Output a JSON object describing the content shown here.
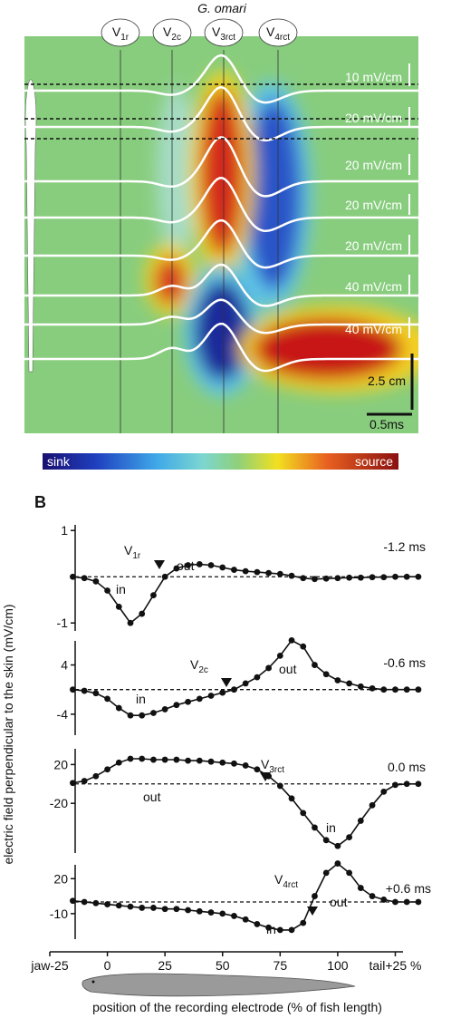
{
  "panel_a": {
    "title": "G. omari",
    "electrodes": [
      {
        "text": "V",
        "sub": "1r"
      },
      {
        "text": "V",
        "sub": "2c"
      },
      {
        "text": "V",
        "sub": "3rct"
      },
      {
        "text": "V",
        "sub": "4rct"
      }
    ],
    "scale_labels": [
      "10 mV/cm",
      "20 mV/cm",
      "20 mV/cm",
      "20 mV/cm",
      "20 mV/cm",
      "40 mV/cm",
      "40 mV/cm"
    ],
    "length_scale": "2.5 cm",
    "time_scale": "0.5ms",
    "colorbar": {
      "low": "sink",
      "high": "source"
    }
  },
  "panel_b": {
    "label": "B",
    "y_label": "electric field perpendicular to the skin (mV/cm)"
  },
  "chart_data": [
    {
      "type": "line",
      "x": [
        -15,
        -10,
        -5,
        0,
        5,
        10,
        15,
        20,
        25,
        30,
        35,
        40,
        45,
        50,
        55,
        60,
        65,
        70,
        75,
        80,
        85,
        90,
        95,
        100,
        105,
        110,
        115,
        120,
        125,
        130,
        135
      ],
      "series": [
        {
          "color": "#111111",
          "values": [
            0,
            -0.03,
            -0.1,
            -0.3,
            -0.65,
            -1.0,
            -0.8,
            -0.4,
            0.0,
            0.18,
            0.25,
            0.27,
            0.25,
            0.2,
            0.15,
            0.12,
            0.1,
            0.08,
            0.06,
            0.02,
            -0.03,
            -0.05,
            -0.04,
            -0.03,
            -0.02,
            -0.02,
            -0.01,
            -0.01,
            0,
            0,
            0
          ]
        }
      ],
      "xlim": [
        -25,
        137
      ],
      "ylim": [
        -1.25,
        1.2
      ],
      "yticks": [
        -1,
        1
      ],
      "hline": 0,
      "annotations": {
        "time": "-1.2 ms",
        "in": "in",
        "out": "out",
        "marker": {
          "text": "V",
          "sub": "1r"
        }
      }
    },
    {
      "type": "line",
      "x": [
        -15,
        -10,
        -5,
        0,
        5,
        10,
        15,
        20,
        25,
        30,
        35,
        40,
        45,
        50,
        55,
        60,
        65,
        70,
        75,
        80,
        85,
        90,
        95,
        100,
        105,
        110,
        115,
        120,
        125,
        130,
        135
      ],
      "series": [
        {
          "color": "#111111",
          "values": [
            0,
            -0.2,
            -0.6,
            -1.5,
            -3,
            -4.2,
            -4.2,
            -3.8,
            -3.2,
            -2.5,
            -2,
            -1.5,
            -1,
            -0.5,
            0,
            1,
            2,
            3.5,
            5.5,
            8,
            7,
            4,
            2.5,
            1.5,
            1,
            0.5,
            0.2,
            0,
            0,
            0,
            0
          ]
        }
      ],
      "xlim": [
        -25,
        137
      ],
      "ylim": [
        -8,
        8.5
      ],
      "yticks": [
        -4,
        4
      ],
      "hline": 0,
      "annotations": {
        "time": "-0.6 ms",
        "in": "in",
        "out": "out",
        "marker": {
          "text": "V",
          "sub": "2c"
        }
      }
    },
    {
      "type": "line",
      "x": [
        -15,
        -10,
        -5,
        0,
        5,
        10,
        15,
        20,
        25,
        30,
        35,
        40,
        45,
        50,
        55,
        60,
        65,
        70,
        75,
        80,
        85,
        90,
        95,
        100,
        105,
        110,
        115,
        120,
        125,
        130,
        135
      ],
      "series": [
        {
          "color": "#111111",
          "values": [
            1,
            3,
            8,
            15,
            22,
            26,
            26,
            25,
            25,
            25,
            24,
            24,
            23,
            22,
            21,
            19,
            15,
            8,
            -2,
            -15,
            -30,
            -45,
            -58,
            -64,
            -55,
            -38,
            -22,
            -8,
            -1,
            0,
            0
          ]
        }
      ],
      "xlim": [
        -25,
        137
      ],
      "ylim": [
        -75,
        40
      ],
      "yticks": [
        -20,
        20
      ],
      "hline": 0,
      "annotations": {
        "time": "0.0 ms",
        "in": "in",
        "out": "out",
        "marker": {
          "text": "V",
          "sub": "3rct"
        }
      }
    },
    {
      "type": "line",
      "x": [
        -15,
        -10,
        -5,
        0,
        5,
        10,
        15,
        20,
        25,
        30,
        35,
        40,
        45,
        50,
        55,
        60,
        65,
        70,
        75,
        80,
        85,
        90,
        95,
        100,
        105,
        110,
        115,
        120,
        125,
        130,
        135
      ],
      "series": [
        {
          "color": "#111111",
          "values": [
            1,
            0,
            -1,
            -2,
            -3,
            -4,
            -5,
            -5,
            -6,
            -6,
            -7,
            -8,
            -9,
            -10,
            -12,
            -15,
            -19,
            -22,
            -24,
            -24,
            -18,
            5,
            25,
            33,
            25,
            12,
            5,
            2,
            0,
            0,
            0
          ]
        }
      ],
      "xlim": [
        -25,
        137
      ],
      "ylim": [
        -35,
        35
      ],
      "yticks": [
        -10,
        20
      ],
      "hline": 0,
      "xticks": [
        {
          "value": -25,
          "label": "jaw-25"
        },
        0,
        25,
        50,
        75,
        100,
        {
          "value": 125,
          "label": "tail+25 %"
        }
      ],
      "x_label": "position of the recording electrode (% of fish length)",
      "annotations": {
        "time": "+0.6 ms",
        "in": "in",
        "out": "out",
        "marker": {
          "text": "V",
          "sub": "4rct"
        }
      }
    }
  ]
}
